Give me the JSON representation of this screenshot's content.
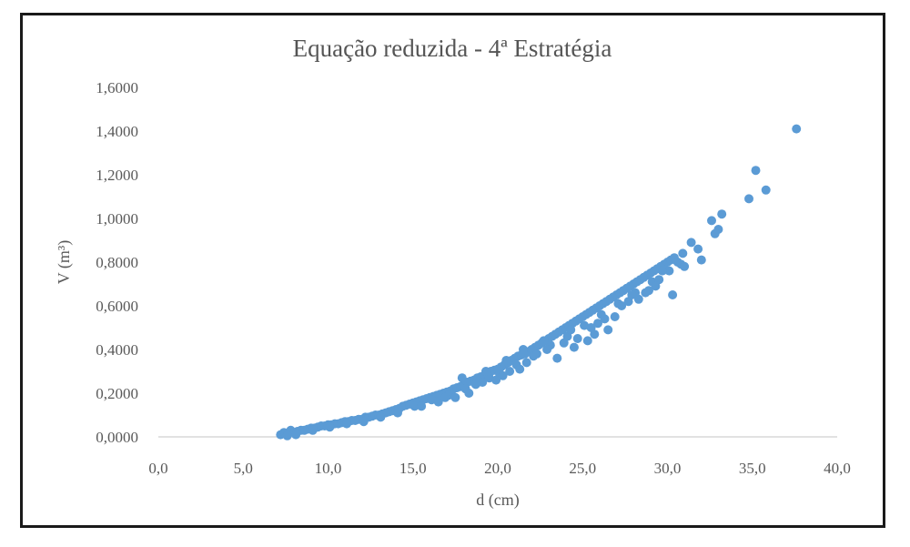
{
  "chart_data": {
    "type": "scatter",
    "title": "Equação reduzida - 4ª Estratégia",
    "xlabel": "d (cm)",
    "ylabel": "V (m³)",
    "xlim": [
      0,
      40
    ],
    "ylim": [
      0,
      1.6
    ],
    "x_ticks": [
      "0,0",
      "5,0",
      "10,0",
      "15,0",
      "20,0",
      "25,0",
      "30,0",
      "35,0",
      "40,0"
    ],
    "y_ticks": [
      "0,0000",
      "0,2000",
      "0,4000",
      "0,6000",
      "0,8000",
      "1,0000",
      "1,2000",
      "1,4000",
      "1,6000"
    ],
    "grid": false,
    "legend": "none",
    "marker_color": "#5b9bd5",
    "series": [
      {
        "points": [
          [
            7.2,
            0.01
          ],
          [
            7.4,
            0.02
          ],
          [
            7.5,
            0.015
          ],
          [
            7.7,
            0.02
          ],
          [
            7.8,
            0.03
          ],
          [
            8.0,
            0.02
          ],
          [
            8.2,
            0.025
          ],
          [
            8.4,
            0.03
          ],
          [
            8.6,
            0.03
          ],
          [
            8.8,
            0.035
          ],
          [
            9.0,
            0.04
          ],
          [
            9.2,
            0.04
          ],
          [
            9.4,
            0.045
          ],
          [
            9.6,
            0.05
          ],
          [
            9.8,
            0.05
          ],
          [
            10.0,
            0.055
          ],
          [
            10.2,
            0.055
          ],
          [
            10.4,
            0.06
          ],
          [
            10.6,
            0.06
          ],
          [
            10.8,
            0.065
          ],
          [
            11.0,
            0.07
          ],
          [
            11.2,
            0.07
          ],
          [
            11.4,
            0.075
          ],
          [
            11.6,
            0.075
          ],
          [
            11.8,
            0.08
          ],
          [
            12.0,
            0.08
          ],
          [
            12.2,
            0.09
          ],
          [
            12.4,
            0.09
          ],
          [
            12.6,
            0.095
          ],
          [
            12.8,
            0.1
          ],
          [
            13.0,
            0.1
          ],
          [
            13.2,
            0.105
          ],
          [
            13.4,
            0.11
          ],
          [
            13.6,
            0.115
          ],
          [
            13.8,
            0.12
          ],
          [
            14.0,
            0.125
          ],
          [
            14.2,
            0.13
          ],
          [
            14.4,
            0.14
          ],
          [
            14.6,
            0.145
          ],
          [
            14.8,
            0.15
          ],
          [
            15.0,
            0.155
          ],
          [
            15.2,
            0.16
          ],
          [
            15.4,
            0.165
          ],
          [
            15.6,
            0.17
          ],
          [
            15.8,
            0.175
          ],
          [
            16.0,
            0.18
          ],
          [
            16.2,
            0.185
          ],
          [
            16.4,
            0.19
          ],
          [
            16.6,
            0.195
          ],
          [
            16.8,
            0.2
          ],
          [
            17.0,
            0.205
          ],
          [
            17.2,
            0.21
          ],
          [
            17.4,
            0.22
          ],
          [
            17.6,
            0.225
          ],
          [
            17.8,
            0.23
          ],
          [
            18.0,
            0.24
          ],
          [
            18.2,
            0.25
          ],
          [
            18.4,
            0.255
          ],
          [
            18.6,
            0.26
          ],
          [
            18.8,
            0.27
          ],
          [
            19.0,
            0.275
          ],
          [
            19.2,
            0.28
          ],
          [
            19.4,
            0.29
          ],
          [
            19.6,
            0.3
          ],
          [
            19.8,
            0.305
          ],
          [
            20.0,
            0.31
          ],
          [
            20.2,
            0.32
          ],
          [
            20.4,
            0.33
          ],
          [
            20.6,
            0.34
          ],
          [
            20.8,
            0.35
          ],
          [
            21.0,
            0.36
          ],
          [
            21.2,
            0.37
          ],
          [
            21.4,
            0.375
          ],
          [
            21.6,
            0.38
          ],
          [
            21.8,
            0.39
          ],
          [
            22.0,
            0.4
          ],
          [
            22.2,
            0.41
          ],
          [
            22.4,
            0.42
          ],
          [
            22.6,
            0.43
          ],
          [
            22.8,
            0.44
          ],
          [
            23.0,
            0.45
          ],
          [
            23.2,
            0.46
          ],
          [
            23.4,
            0.47
          ],
          [
            23.6,
            0.48
          ],
          [
            23.8,
            0.49
          ],
          [
            24.0,
            0.5
          ],
          [
            24.2,
            0.51
          ],
          [
            24.4,
            0.52
          ],
          [
            24.6,
            0.53
          ],
          [
            24.8,
            0.54
          ],
          [
            25.0,
            0.55
          ],
          [
            25.2,
            0.56
          ],
          [
            25.4,
            0.57
          ],
          [
            25.6,
            0.58
          ],
          [
            25.8,
            0.59
          ],
          [
            26.0,
            0.6
          ],
          [
            26.2,
            0.61
          ],
          [
            26.4,
            0.62
          ],
          [
            26.6,
            0.63
          ],
          [
            26.8,
            0.64
          ],
          [
            27.0,
            0.65
          ],
          [
            27.2,
            0.66
          ],
          [
            27.4,
            0.67
          ],
          [
            27.6,
            0.68
          ],
          [
            27.8,
            0.69
          ],
          [
            28.0,
            0.7
          ],
          [
            28.2,
            0.71
          ],
          [
            28.4,
            0.72
          ],
          [
            28.6,
            0.73
          ],
          [
            28.8,
            0.74
          ],
          [
            29.0,
            0.75
          ],
          [
            29.2,
            0.76
          ],
          [
            29.4,
            0.77
          ],
          [
            29.6,
            0.78
          ],
          [
            29.8,
            0.79
          ],
          [
            30.0,
            0.8
          ],
          [
            30.2,
            0.81
          ],
          [
            30.4,
            0.82
          ],
          [
            30.6,
            0.8
          ],
          [
            30.8,
            0.79
          ],
          [
            31.0,
            0.78
          ],
          [
            31.4,
            0.89
          ],
          [
            31.8,
            0.86
          ],
          [
            32.0,
            0.81
          ],
          [
            32.6,
            0.99
          ],
          [
            32.8,
            0.93
          ],
          [
            33.0,
            0.95
          ],
          [
            33.2,
            1.02
          ],
          [
            34.8,
            1.09
          ],
          [
            35.2,
            1.22
          ],
          [
            35.8,
            1.13
          ],
          [
            37.6,
            1.41
          ],
          [
            7.6,
            0.005
          ],
          [
            8.1,
            0.01
          ],
          [
            9.1,
            0.03
          ],
          [
            10.1,
            0.045
          ],
          [
            11.1,
            0.06
          ],
          [
            12.1,
            0.07
          ],
          [
            13.1,
            0.09
          ],
          [
            14.1,
            0.11
          ],
          [
            15.1,
            0.14
          ],
          [
            16.1,
            0.17
          ],
          [
            17.1,
            0.19
          ],
          [
            18.1,
            0.22
          ],
          [
            19.1,
            0.25
          ],
          [
            20.1,
            0.29
          ],
          [
            21.1,
            0.33
          ],
          [
            22.1,
            0.37
          ],
          [
            23.1,
            0.42
          ],
          [
            24.1,
            0.46
          ],
          [
            25.1,
            0.51
          ],
          [
            26.1,
            0.56
          ],
          [
            27.1,
            0.61
          ],
          [
            28.1,
            0.66
          ],
          [
            29.1,
            0.71
          ],
          [
            30.1,
            0.76
          ],
          [
            18.3,
            0.2
          ],
          [
            19.5,
            0.27
          ],
          [
            20.7,
            0.3
          ],
          [
            21.5,
            0.4
          ],
          [
            22.9,
            0.4
          ],
          [
            24.7,
            0.45
          ],
          [
            25.3,
            0.44
          ],
          [
            26.5,
            0.49
          ],
          [
            27.3,
            0.6
          ],
          [
            28.7,
            0.66
          ],
          [
            30.3,
            0.65
          ],
          [
            30.9,
            0.84
          ],
          [
            16.5,
            0.16
          ],
          [
            17.5,
            0.18
          ],
          [
            18.7,
            0.24
          ],
          [
            19.9,
            0.26
          ],
          [
            21.3,
            0.31
          ],
          [
            23.5,
            0.36
          ],
          [
            24.5,
            0.41
          ],
          [
            25.7,
            0.47
          ],
          [
            26.9,
            0.55
          ],
          [
            28.3,
            0.63
          ],
          [
            29.5,
            0.72
          ],
          [
            20.5,
            0.35
          ],
          [
            22.3,
            0.38
          ],
          [
            23.9,
            0.43
          ],
          [
            25.9,
            0.52
          ],
          [
            27.7,
            0.62
          ],
          [
            29.3,
            0.69
          ],
          [
            19.3,
            0.3
          ],
          [
            21.7,
            0.34
          ],
          [
            24.3,
            0.49
          ],
          [
            26.3,
            0.54
          ],
          [
            28.9,
            0.67
          ],
          [
            17.9,
            0.27
          ],
          [
            20.3,
            0.28
          ],
          [
            22.7,
            0.44
          ],
          [
            25.5,
            0.5
          ],
          [
            27.9,
            0.65
          ],
          [
            29.7,
            0.76
          ],
          [
            15.5,
            0.14
          ],
          [
            16.9,
            0.18
          ]
        ]
      }
    ]
  }
}
